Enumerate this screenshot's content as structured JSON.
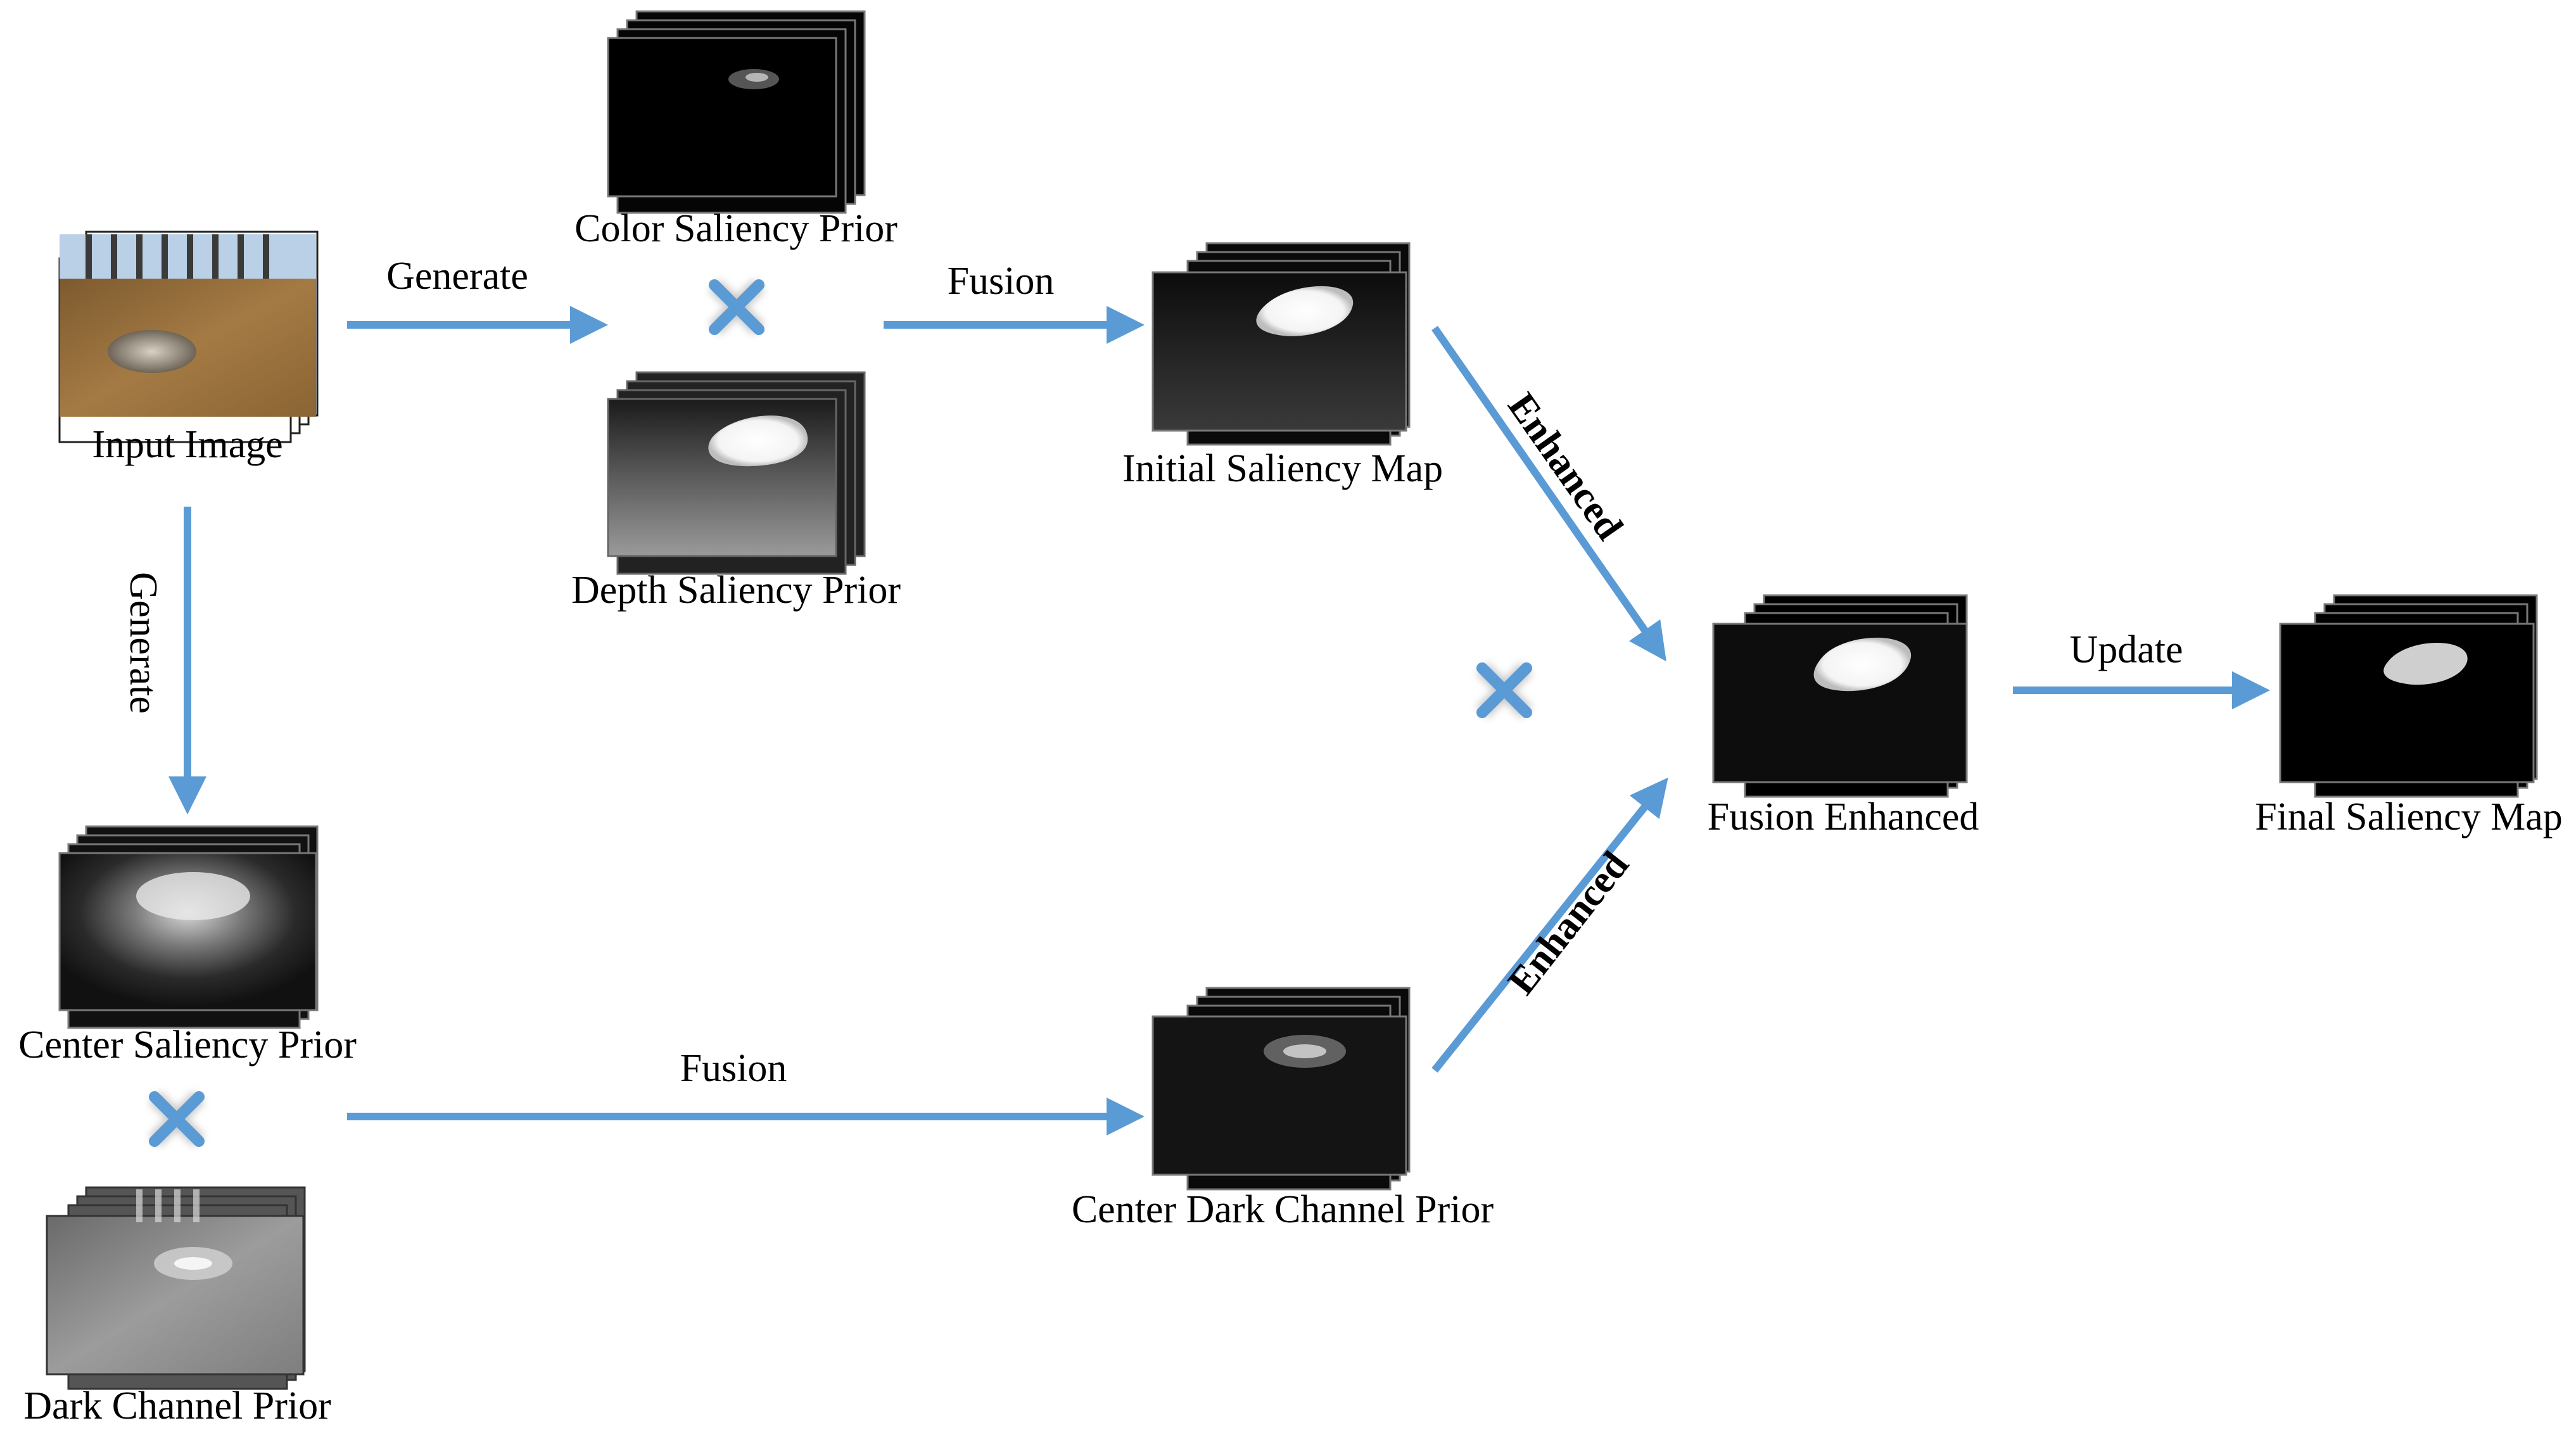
{
  "nodes": {
    "input_image": "Input Image",
    "color_saliency_prior": "Color Saliency Prior",
    "depth_saliency_prior": "Depth Saliency Prior",
    "initial_saliency_map": "Initial Saliency Map",
    "fusion_enhanced": "Fusion Enhanced",
    "final_saliency_map": "Final Saliency Map",
    "center_saliency_prior": "Center Saliency Prior",
    "dark_channel_prior": "Dark Channel Prior",
    "center_dark_channel_prior": "Center Dark Channel Prior"
  },
  "edges": {
    "generate_top": "Generate",
    "generate_side": "Generate",
    "fusion_top": "Fusion",
    "fusion_bottom": "Fusion",
    "enhanced_top": "Enhanced",
    "enhanced_bottom": "Enhanced",
    "update": "Update"
  },
  "colors": {
    "arrow": "#5B9BD5",
    "multiply": "#5B9BD5",
    "background": "#ffffff"
  },
  "icons": {
    "multiply": "multiply-icon",
    "arrow": "arrow-icon"
  }
}
